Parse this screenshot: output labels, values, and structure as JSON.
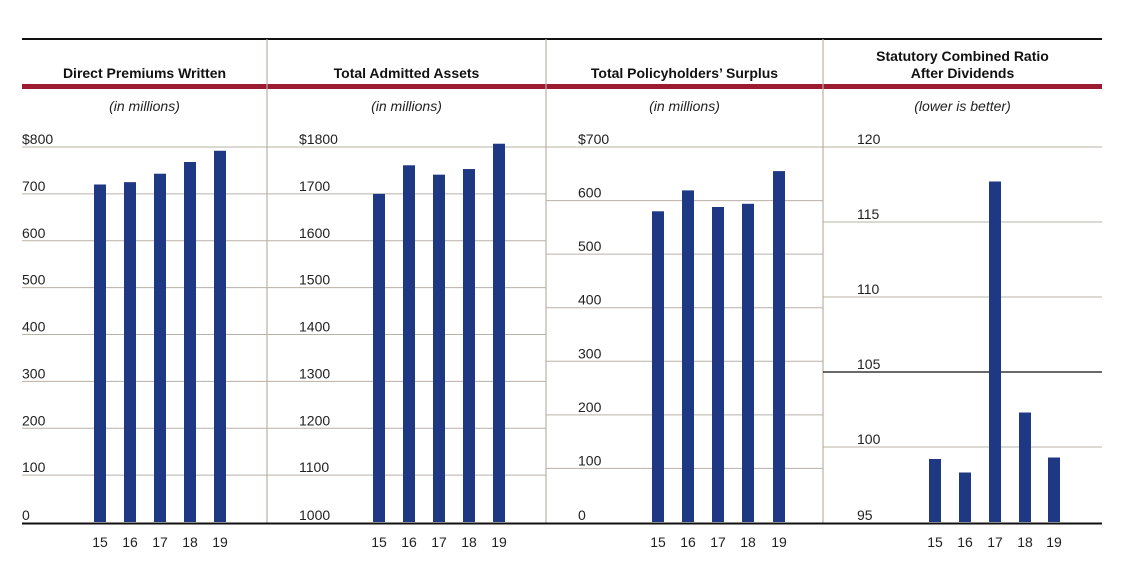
{
  "colors": {
    "bar": "#1f3884",
    "accent_rule": "#9b1b30",
    "grid": "#b9b1a6",
    "axis": "#111111",
    "divider": "#b9b1a6"
  },
  "chart_data": [
    {
      "type": "bar",
      "title": "Direct Premiums Written",
      "subtitle": "(in millions)",
      "categories": [
        "15",
        "16",
        "17",
        "18",
        "19"
      ],
      "values": [
        720,
        725,
        743,
        768,
        792
      ],
      "ylim": [
        0,
        800
      ],
      "ytick_values": [
        0,
        100,
        200,
        300,
        400,
        500,
        600,
        700,
        800
      ],
      "ytick_labels": [
        "0",
        "100",
        "200",
        "300",
        "400",
        "500",
        "600",
        "700",
        "$800"
      ],
      "grid": true
    },
    {
      "type": "bar",
      "title": "Total Admitted Assets",
      "subtitle": "(in millions)",
      "categories": [
        "15",
        "16",
        "17",
        "18",
        "19"
      ],
      "values": [
        1700,
        1761,
        1741,
        1753,
        1807
      ],
      "ylim": [
        1000,
        1800
      ],
      "ytick_values": [
        1000,
        1100,
        1200,
        1300,
        1400,
        1500,
        1600,
        1700,
        1800
      ],
      "ytick_labels": [
        "1000",
        "1100",
        "1200",
        "1300",
        "1400",
        "1500",
        "1600",
        "1700",
        "$1800"
      ],
      "grid": true
    },
    {
      "type": "bar",
      "title": "Total Policyholders’ Surplus",
      "subtitle": "(in millions)",
      "categories": [
        "15",
        "16",
        "17",
        "18",
        "19"
      ],
      "values": [
        580,
        619,
        588,
        594,
        655
      ],
      "ylim": [
        0,
        700
      ],
      "ytick_values": [
        0,
        100,
        200,
        300,
        400,
        500,
        600,
        700
      ],
      "ytick_labels": [
        "0",
        "100",
        "200",
        "300",
        "400",
        "500",
        "600",
        "$700"
      ],
      "grid": true
    },
    {
      "type": "bar",
      "title": [
        "Statutory Combined Ratio",
        "After Dividends"
      ],
      "subtitle": "(lower is better)",
      "categories": [
        "15",
        "16",
        "17",
        "18",
        "19"
      ],
      "values": [
        99.2,
        98.3,
        117.7,
        102.3,
        99.3
      ],
      "ylim": [
        95,
        120
      ],
      "ytick_values": [
        95,
        100,
        105,
        110,
        115,
        120
      ],
      "ytick_labels": [
        "95",
        "100",
        "105",
        "110",
        "115",
        "120"
      ],
      "highlight_gridline": 105,
      "grid": true
    }
  ]
}
